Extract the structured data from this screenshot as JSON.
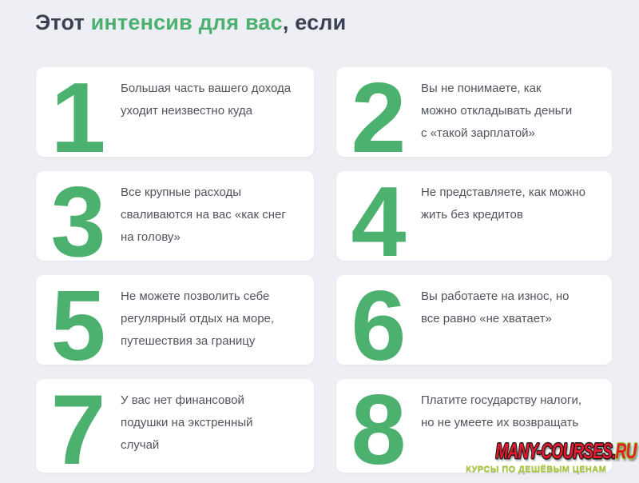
{
  "title": {
    "part1": "Этот ",
    "part2": "интенсив для вас",
    "part3": ", если"
  },
  "cards": [
    {
      "number": "1",
      "text": "Большая часть вашего дохода\nуходит неизвестно куда"
    },
    {
      "number": "2",
      "text": "Вы не понимаете, как\nможно откладывать деньги\nс «такой зарплатой»"
    },
    {
      "number": "3",
      "text": "Все крупные расходы\nсваливаются на вас «как снег\nна голову»"
    },
    {
      "number": "4",
      "text": "Не представляете, как можно\nжить без кредитов"
    },
    {
      "number": "5",
      "text": "Не можете позволить себе\nрегулярный отдых на море,\nпутешествия за границу"
    },
    {
      "number": "6",
      "text": "Вы работаете на износ, но\nвсе равно «не хватает»"
    },
    {
      "number": "7",
      "text": "У вас нет финансовой\nподушки на экстренный\nслучай"
    },
    {
      "number": "8",
      "text": "Платите государству налоги,\nно не умеете их возвращать"
    }
  ],
  "watermark": {
    "logo_main": "MANY-COURSES",
    "logo_dot": ".",
    "logo_tld": "RU",
    "tagline": "КУРСЫ ПО ДЕШЁВЫМ ЦЕНАМ"
  },
  "colors": {
    "background": "#edeff4",
    "card_bg": "#ffffff",
    "accent_green": "#4cb06f",
    "title_dark": "#3a4154",
    "card_text": "#4f545e",
    "logo_red": "#e8192c",
    "tagline_green": "#a6c837"
  }
}
